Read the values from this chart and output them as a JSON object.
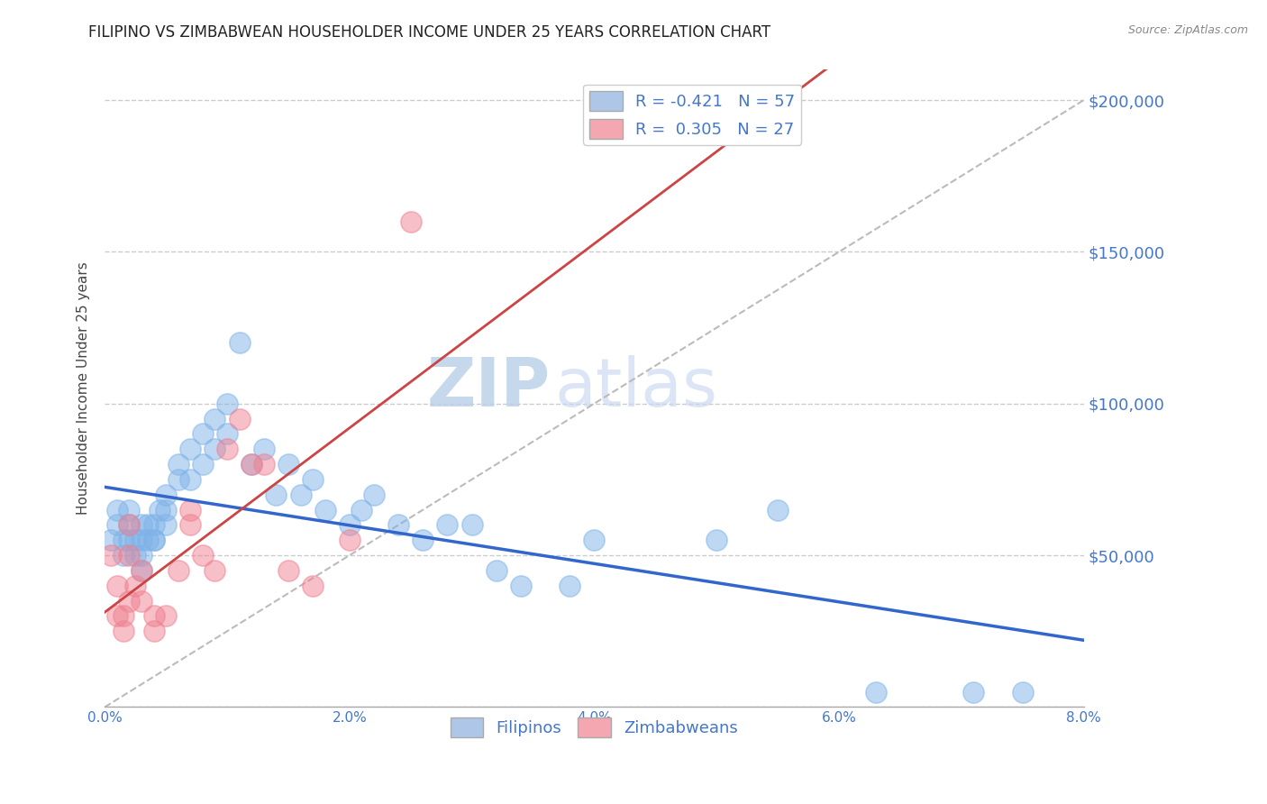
{
  "title": "FILIPINO VS ZIMBABWEAN HOUSEHOLDER INCOME UNDER 25 YEARS CORRELATION CHART",
  "source": "Source: ZipAtlas.com",
  "ylabel": "Householder Income Under 25 years",
  "xlim": [
    0.0,
    0.08
  ],
  "ylim": [
    0,
    210000
  ],
  "yticks": [
    0,
    50000,
    100000,
    150000,
    200000
  ],
  "ytick_labels": [
    "",
    "$50,000",
    "$100,000",
    "$150,000",
    "$200,000"
  ],
  "xticks": [
    0.0,
    0.01,
    0.02,
    0.03,
    0.04,
    0.05,
    0.06,
    0.07,
    0.08
  ],
  "xtick_labels": [
    "0.0%",
    "",
    "2.0%",
    "",
    "4.0%",
    "",
    "6.0%",
    "",
    "8.0%"
  ],
  "legend_R_entries": [
    {
      "label": "R = -0.421   N = 57",
      "color": "#aec6e8"
    },
    {
      "label": "R =  0.305   N = 27",
      "color": "#f4a7b0"
    }
  ],
  "legend_labels": [
    "Filipinos",
    "Zimbabweans"
  ],
  "filipino_color": "#7fb3e8",
  "zimbabwean_color": "#f08090",
  "filipinos_x": [
    0.0005,
    0.001,
    0.001,
    0.0015,
    0.0015,
    0.002,
    0.002,
    0.002,
    0.0025,
    0.0025,
    0.003,
    0.003,
    0.003,
    0.003,
    0.0035,
    0.0035,
    0.004,
    0.004,
    0.004,
    0.0045,
    0.005,
    0.005,
    0.005,
    0.006,
    0.006,
    0.007,
    0.007,
    0.008,
    0.008,
    0.009,
    0.009,
    0.01,
    0.01,
    0.011,
    0.012,
    0.013,
    0.014,
    0.015,
    0.016,
    0.017,
    0.018,
    0.02,
    0.021,
    0.022,
    0.024,
    0.026,
    0.028,
    0.03,
    0.032,
    0.034,
    0.038,
    0.04,
    0.05,
    0.055,
    0.063,
    0.071,
    0.075
  ],
  "filipinos_y": [
    55000,
    65000,
    60000,
    55000,
    50000,
    65000,
    60000,
    55000,
    50000,
    55000,
    60000,
    55000,
    50000,
    45000,
    60000,
    55000,
    55000,
    60000,
    55000,
    65000,
    70000,
    65000,
    60000,
    80000,
    75000,
    75000,
    85000,
    90000,
    80000,
    95000,
    85000,
    90000,
    100000,
    120000,
    80000,
    85000,
    70000,
    80000,
    70000,
    75000,
    65000,
    60000,
    65000,
    70000,
    60000,
    55000,
    60000,
    60000,
    45000,
    40000,
    40000,
    55000,
    55000,
    65000,
    5000,
    5000,
    5000
  ],
  "zimbabweans_x": [
    0.0005,
    0.001,
    0.001,
    0.0015,
    0.0015,
    0.002,
    0.002,
    0.002,
    0.0025,
    0.003,
    0.003,
    0.004,
    0.004,
    0.005,
    0.006,
    0.007,
    0.007,
    0.008,
    0.009,
    0.01,
    0.011,
    0.012,
    0.013,
    0.015,
    0.017,
    0.02,
    0.025
  ],
  "zimbabweans_y": [
    50000,
    40000,
    30000,
    30000,
    25000,
    60000,
    50000,
    35000,
    40000,
    45000,
    35000,
    30000,
    25000,
    30000,
    45000,
    65000,
    60000,
    50000,
    45000,
    85000,
    95000,
    80000,
    80000,
    45000,
    40000,
    55000,
    160000
  ],
  "watermark_zip": "ZIP",
  "watermark_atlas": "atlas",
  "background_color": "#ffffff",
  "grid_color": "#cccccc",
  "title_color": "#222222",
  "tick_color": "#4477cc",
  "source_color": "#888888"
}
